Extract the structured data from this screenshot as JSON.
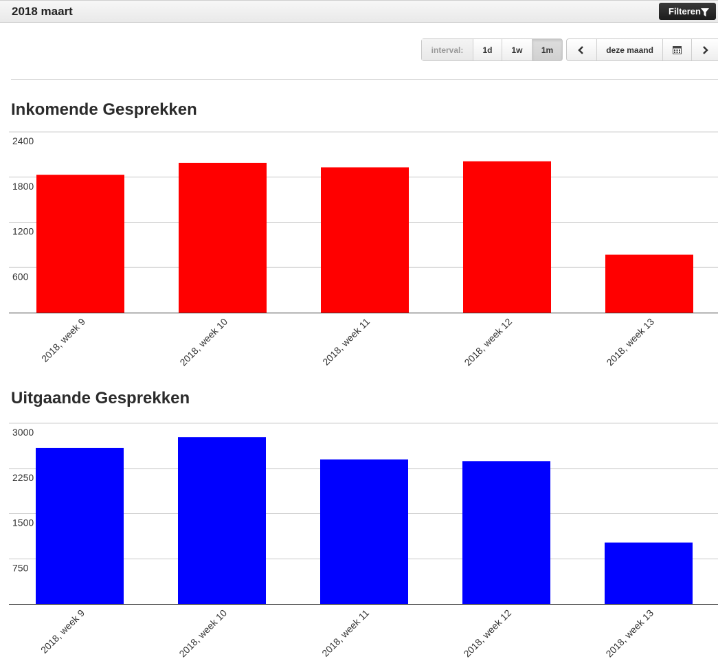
{
  "header": {
    "title": "2018 maart",
    "filter_label": "Filteren"
  },
  "toolbar": {
    "interval_label": "interval:",
    "intervals": [
      "1d",
      "1w",
      "1m"
    ],
    "active_interval": "1m",
    "period_label": "deze maand"
  },
  "icons": {
    "prev": "chevron-left-icon",
    "calendar": "calendar-icon",
    "next": "chevron-right-icon",
    "filter": "funnel-icon"
  },
  "chart_data": [
    {
      "type": "bar",
      "title": "Inkomende Gesprekken",
      "categories": [
        "2018, week 9",
        "2018, week 10",
        "2018, week 11",
        "2018, week 12",
        "2018, week 13"
      ],
      "values": [
        1830,
        1990,
        1930,
        2010,
        770
      ],
      "yticks": [
        600,
        1200,
        1800,
        2400
      ],
      "ylim": [
        0,
        2400
      ],
      "color": "#ff0000",
      "grid": true
    },
    {
      "type": "bar",
      "title": "Uitgaande Gesprekken",
      "categories": [
        "2018, week 9",
        "2018, week 10",
        "2018, week 11",
        "2018, week 12",
        "2018, week 13"
      ],
      "values": [
        2590,
        2770,
        2400,
        2370,
        1020
      ],
      "yticks": [
        750,
        1500,
        2250,
        3000
      ],
      "ylim": [
        0,
        3000
      ],
      "color": "#0000ff",
      "grid": true
    }
  ]
}
